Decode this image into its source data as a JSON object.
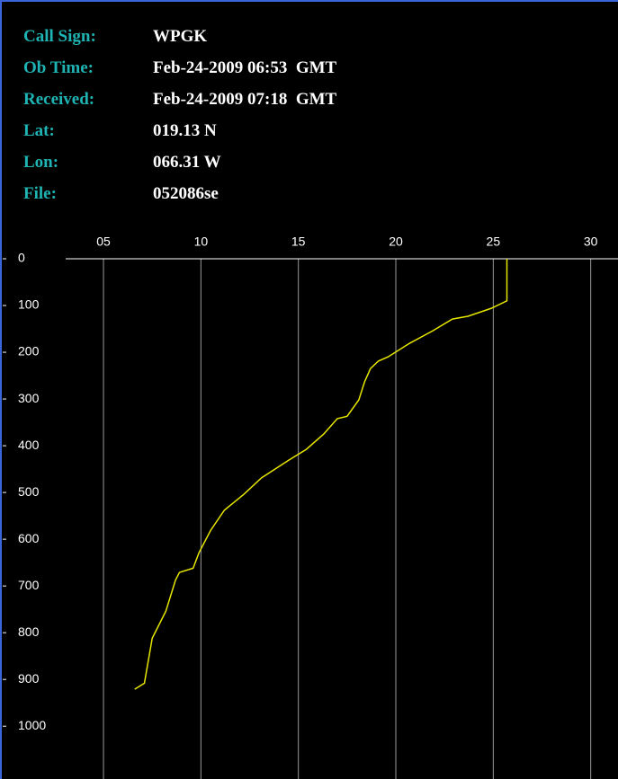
{
  "header": {
    "rows": [
      {
        "label": "Call Sign:",
        "value": "WPGK"
      },
      {
        "label": "Ob Time:",
        "value": "Feb-24-2009 06:53  GMT"
      },
      {
        "label": "Received:",
        "value": "Feb-24-2009 07:18  GMT"
      },
      {
        "label": "Lat:",
        "value": "019.13 N"
      },
      {
        "label": "Lon:",
        "value": "066.31 W"
      },
      {
        "label": "File:",
        "value": "052086se"
      }
    ]
  },
  "chart_data": {
    "type": "line",
    "color": "#e6e600",
    "y_inverted": true,
    "grid": true,
    "x": [
      25.7,
      25.7,
      24.9,
      23.7,
      22.9,
      21.9,
      20.7,
      19.6,
      19.1,
      18.7,
      18.4,
      18.1,
      17.5,
      17.0,
      16.3,
      15.4,
      14.5,
      13.1,
      12.2,
      11.2,
      10.5,
      9.9,
      9.6,
      8.9,
      8.7,
      8.2,
      7.5,
      7.1,
      6.6
    ],
    "values": [
      0,
      90,
      106,
      123,
      129,
      154,
      181,
      210,
      219,
      235,
      263,
      302,
      337,
      342,
      375,
      408,
      431,
      469,
      504,
      538,
      581,
      629,
      662,
      671,
      687,
      754,
      812,
      908,
      921
    ],
    "xlim": [
      3.06,
      31.4
    ],
    "xticks": [
      {
        "value": 5,
        "label": "05"
      },
      10,
      15,
      20,
      25,
      30
    ],
    "ylim": [
      0,
      1113
    ],
    "yticks": [
      0,
      100,
      200,
      300,
      400,
      500,
      600,
      700,
      800,
      900,
      1000
    ]
  }
}
